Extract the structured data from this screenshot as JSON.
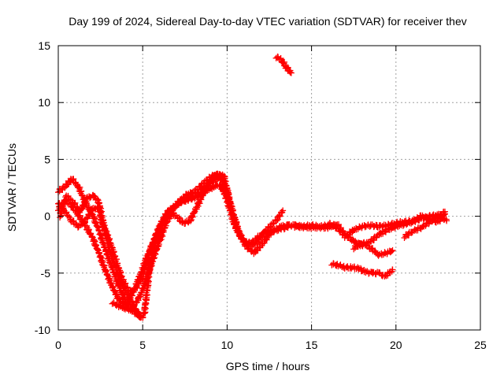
{
  "chart_data": {
    "type": "scatter",
    "title": "Day 199 of 2024, Sidereal Day-to-day VTEC variation (SDTVAR) for receiver thev",
    "xlabel": "GPS time / hours",
    "ylabel": "SDTVAR / TECUs",
    "xlim": [
      0,
      25
    ],
    "ylim": [
      -10,
      15
    ],
    "xticks": [
      0,
      5,
      10,
      15,
      20,
      25
    ],
    "yticks": [
      -10,
      -5,
      0,
      5,
      10,
      15
    ],
    "grid": true,
    "marker": "+",
    "color": "#ff0000",
    "series": [
      {
        "name": "trace-1",
        "points": [
          [
            0.0,
            2.2
          ],
          [
            0.4,
            2.6
          ],
          [
            0.8,
            3.3
          ],
          [
            1.2,
            2.6
          ],
          [
            1.6,
            1.2
          ],
          [
            2.0,
            0.2
          ],
          [
            2.4,
            -1.2
          ],
          [
            2.8,
            -3.0
          ],
          [
            3.2,
            -4.6
          ],
          [
            3.6,
            -6.2
          ],
          [
            4.0,
            -7.6
          ],
          [
            4.4,
            -8.0
          ],
          [
            4.8,
            -7.2
          ],
          [
            5.2,
            -5.6
          ],
          [
            5.6,
            -3.8
          ],
          [
            6.0,
            -2.2
          ],
          [
            6.4,
            -0.6
          ],
          [
            6.8,
            0.6
          ],
          [
            7.2,
            1.4
          ],
          [
            7.6,
            1.9
          ],
          [
            8.0,
            2.1
          ],
          [
            8.4,
            2.6
          ],
          [
            8.8,
            3.2
          ],
          [
            9.2,
            3.6
          ],
          [
            9.6,
            3.7
          ],
          [
            10.0,
            2.2
          ],
          [
            10.4,
            0.0
          ],
          [
            10.8,
            -1.8
          ],
          [
            11.2,
            -2.8
          ],
          [
            11.6,
            -3.2
          ],
          [
            12.0,
            -2.6
          ],
          [
            12.4,
            -1.8
          ],
          [
            12.8,
            -1.2
          ],
          [
            13.2,
            -0.9
          ],
          [
            13.6,
            -0.8
          ],
          [
            14.0,
            -0.8
          ],
          [
            14.5,
            -0.9
          ],
          [
            15.0,
            -0.8
          ],
          [
            15.5,
            -0.9
          ],
          [
            16.0,
            -0.8
          ]
        ]
      },
      {
        "name": "trace-2",
        "points": [
          [
            0.0,
            0.6
          ],
          [
            0.4,
            1.4
          ],
          [
            0.8,
            0.9
          ],
          [
            1.2,
            0.1
          ],
          [
            1.6,
            -0.8
          ],
          [
            2.0,
            -1.8
          ],
          [
            2.4,
            -3.2
          ],
          [
            2.8,
            -4.8
          ],
          [
            3.2,
            -6.2
          ],
          [
            3.6,
            -7.4
          ],
          [
            4.0,
            -7.8
          ],
          [
            4.4,
            -6.8
          ],
          [
            4.8,
            -5.4
          ],
          [
            5.2,
            -3.8
          ],
          [
            5.6,
            -2.4
          ],
          [
            6.0,
            -1.2
          ],
          [
            6.4,
            0.0
          ],
          [
            6.8,
            0.8
          ],
          [
            7.2,
            1.2
          ],
          [
            7.6,
            1.4
          ],
          [
            8.0,
            1.6
          ],
          [
            8.4,
            1.9
          ],
          [
            8.8,
            2.3
          ],
          [
            9.2,
            2.6
          ],
          [
            9.6,
            2.8
          ],
          [
            10.0,
            1.4
          ],
          [
            10.4,
            -0.6
          ],
          [
            10.8,
            -1.9
          ],
          [
            11.2,
            -2.4
          ],
          [
            11.6,
            -2.2
          ],
          [
            12.0,
            -1.6
          ],
          [
            12.4,
            -1.4
          ],
          [
            12.8,
            -1.3
          ],
          [
            13.2,
            -1.1
          ],
          [
            13.6,
            -1.0
          ]
        ]
      },
      {
        "name": "trace-3",
        "points": [
          [
            0.0,
            1.2
          ],
          [
            0.4,
            0.4
          ],
          [
            0.8,
            -0.4
          ],
          [
            1.2,
            -0.9
          ],
          [
            1.6,
            -0.4
          ],
          [
            2.0,
            0.6
          ],
          [
            2.4,
            0.8
          ],
          [
            2.6,
            -0.6
          ],
          [
            3.0,
            -2.0
          ],
          [
            3.4,
            -3.8
          ],
          [
            3.8,
            -5.6
          ],
          [
            4.2,
            -6.6
          ],
          [
            4.6,
            -6.4
          ],
          [
            5.0,
            -5.2
          ],
          [
            5.4,
            -3.2
          ],
          [
            5.8,
            -1.6
          ],
          [
            6.2,
            -0.2
          ],
          [
            6.6,
            0.6
          ],
          [
            7.0,
            1.0
          ],
          [
            7.4,
            1.4
          ],
          [
            7.8,
            1.6
          ],
          [
            8.2,
            1.8
          ],
          [
            8.6,
            2.4
          ],
          [
            9.0,
            2.9
          ],
          [
            9.4,
            3.3
          ],
          [
            9.8,
            3.6
          ],
          [
            10.2,
            1.0
          ],
          [
            10.6,
            -1.2
          ],
          [
            11.0,
            -2.2
          ],
          [
            11.4,
            -2.6
          ],
          [
            11.8,
            -2.3
          ],
          [
            12.2,
            -1.4
          ],
          [
            12.6,
            -0.8
          ],
          [
            13.0,
            -0.2
          ],
          [
            13.3,
            0.5
          ]
        ]
      },
      {
        "name": "trace-4",
        "points": [
          [
            0.1,
            0.0
          ],
          [
            0.5,
            1.8
          ],
          [
            0.9,
            1.2
          ],
          [
            1.3,
            0.4
          ],
          [
            1.7,
            1.6
          ],
          [
            2.1,
            1.8
          ],
          [
            2.4,
            1.2
          ],
          [
            2.7,
            -0.8
          ],
          [
            3.0,
            -2.8
          ],
          [
            3.4,
            -4.6
          ],
          [
            3.8,
            -6.2
          ],
          [
            4.2,
            -7.2
          ],
          [
            4.6,
            -8.2
          ],
          [
            4.9,
            -9.0
          ],
          [
            5.1,
            -8.6
          ],
          [
            5.4,
            -4.6
          ],
          [
            5.8,
            -2.0
          ],
          [
            6.2,
            -0.4
          ],
          [
            6.6,
            0.4
          ],
          [
            7.0,
            0.0
          ],
          [
            7.4,
            -0.6
          ],
          [
            7.8,
            -0.4
          ],
          [
            8.2,
            0.8
          ],
          [
            8.6,
            2.0
          ],
          [
            9.0,
            3.0
          ],
          [
            9.4,
            3.8
          ],
          [
            9.8,
            3.0
          ]
        ]
      },
      {
        "name": "trace-5",
        "points": [
          [
            3.2,
            -7.6
          ],
          [
            3.6,
            -7.9
          ],
          [
            4.0,
            -8.1
          ],
          [
            4.4,
            -8.3
          ],
          [
            4.8,
            -8.8
          ]
        ]
      },
      {
        "name": "trace-6",
        "points": [
          [
            12.9,
            14.0
          ],
          [
            13.1,
            13.9
          ],
          [
            13.3,
            13.6
          ],
          [
            13.5,
            13.1
          ],
          [
            13.8,
            12.6
          ]
        ]
      },
      {
        "name": "trace-7",
        "points": [
          [
            14.0,
            -0.9
          ],
          [
            15.0,
            -1.0
          ],
          [
            16.0,
            -1.0
          ],
          [
            16.5,
            -0.7
          ],
          [
            17.0,
            -1.6
          ],
          [
            17.5,
            -2.2
          ],
          [
            18.0,
            -2.6
          ],
          [
            18.5,
            -2.2
          ],
          [
            19.0,
            -1.6
          ],
          [
            19.5,
            -1.2
          ],
          [
            20.0,
            -0.9
          ],
          [
            20.5,
            -0.7
          ],
          [
            21.0,
            -0.5
          ],
          [
            21.5,
            -0.2
          ],
          [
            22.0,
            0.0
          ],
          [
            22.5,
            0.1
          ],
          [
            23.0,
            -0.4
          ]
        ]
      },
      {
        "name": "trace-8",
        "points": [
          [
            16.0,
            -0.6
          ],
          [
            16.5,
            -1.0
          ],
          [
            17.0,
            -1.8
          ],
          [
            17.5,
            -1.2
          ],
          [
            18.0,
            -0.9
          ],
          [
            18.5,
            -0.8
          ],
          [
            19.0,
            -0.9
          ],
          [
            19.5,
            -0.8
          ],
          [
            20.0,
            -0.6
          ],
          [
            20.5,
            -0.5
          ],
          [
            21.0,
            -0.4
          ],
          [
            21.5,
            0.0
          ],
          [
            22.0,
            -0.3
          ],
          [
            22.5,
            -0.5
          ],
          [
            22.9,
            0.2
          ]
        ]
      },
      {
        "name": "trace-9",
        "points": [
          [
            17.5,
            -2.8
          ],
          [
            18.0,
            -2.3
          ],
          [
            18.5,
            -2.8
          ],
          [
            19.0,
            -3.4
          ],
          [
            19.5,
            -3.2
          ],
          [
            19.8,
            -3.0
          ]
        ]
      },
      {
        "name": "trace-10",
        "points": [
          [
            20.5,
            -1.8
          ],
          [
            21.0,
            -1.3
          ],
          [
            21.5,
            -1.0
          ],
          [
            22.0,
            -0.5
          ],
          [
            22.5,
            0.0
          ],
          [
            22.9,
            0.4
          ]
        ]
      },
      {
        "name": "trace-11",
        "points": [
          [
            16.2,
            -4.2
          ],
          [
            16.6,
            -4.3
          ],
          [
            17.0,
            -4.5
          ],
          [
            17.4,
            -4.5
          ],
          [
            17.8,
            -4.6
          ],
          [
            18.2,
            -4.9
          ],
          [
            18.6,
            -5.0
          ],
          [
            19.0,
            -5.0
          ],
          [
            19.3,
            -5.3
          ],
          [
            19.6,
            -5.0
          ],
          [
            19.8,
            -4.7
          ]
        ]
      }
    ]
  }
}
